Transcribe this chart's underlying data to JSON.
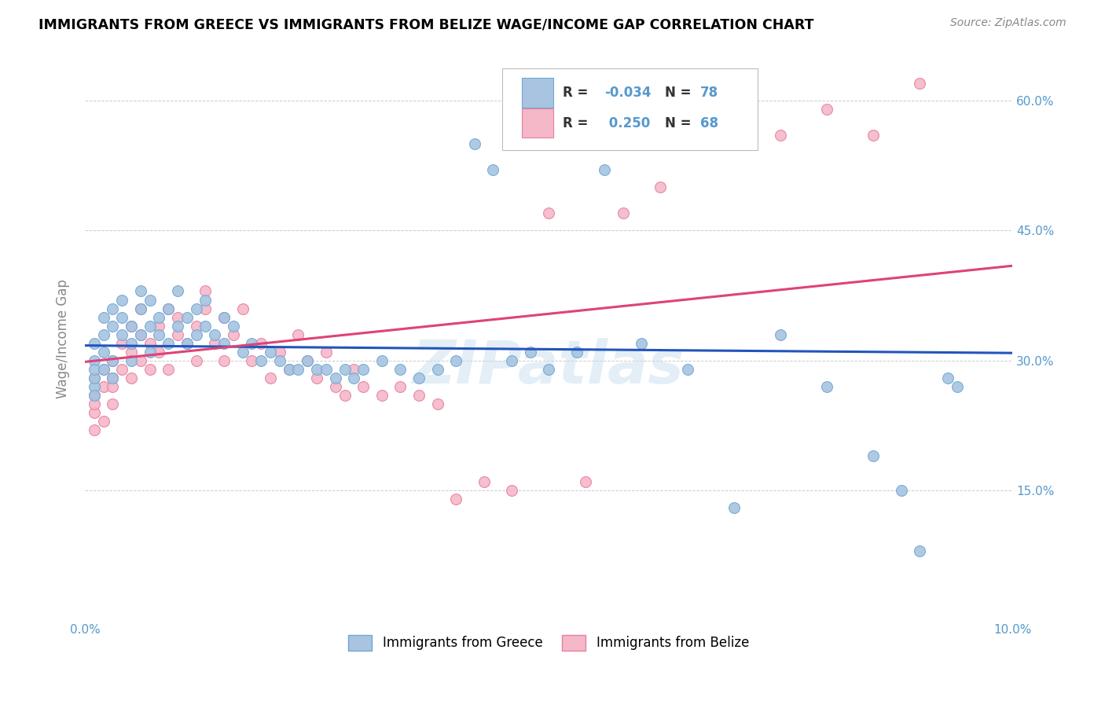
{
  "title": "IMMIGRANTS FROM GREECE VS IMMIGRANTS FROM BELIZE WAGE/INCOME GAP CORRELATION CHART",
  "source": "Source: ZipAtlas.com",
  "ylabel": "Wage/Income Gap",
  "xlim": [
    0.0,
    0.1
  ],
  "ylim": [
    0.0,
    0.65
  ],
  "x_ticks": [
    0.0,
    0.02,
    0.04,
    0.06,
    0.08,
    0.1
  ],
  "y_ticks": [
    0.0,
    0.15,
    0.3,
    0.45,
    0.6
  ],
  "greece_color": "#a8c4e0",
  "belize_color": "#f4b8c8",
  "greece_edge": "#6fa8d4",
  "belize_edge": "#e87fa0",
  "trend_greece_color": "#2255bb",
  "trend_belize_color": "#dd4477",
  "trend_belize_dash_color": "#ddaaaa",
  "R_greece": -0.034,
  "N_greece": 78,
  "R_belize": 0.25,
  "N_belize": 68,
  "legend_label_greece": "Immigrants from Greece",
  "legend_label_belize": "Immigrants from Belize",
  "greece_x": [
    0.001,
    0.001,
    0.001,
    0.001,
    0.001,
    0.001,
    0.002,
    0.002,
    0.002,
    0.002,
    0.003,
    0.003,
    0.003,
    0.003,
    0.004,
    0.004,
    0.004,
    0.005,
    0.005,
    0.005,
    0.006,
    0.006,
    0.006,
    0.007,
    0.007,
    0.007,
    0.008,
    0.008,
    0.009,
    0.009,
    0.01,
    0.01,
    0.011,
    0.011,
    0.012,
    0.012,
    0.013,
    0.013,
    0.014,
    0.015,
    0.015,
    0.016,
    0.017,
    0.018,
    0.019,
    0.02,
    0.021,
    0.022,
    0.023,
    0.024,
    0.025,
    0.026,
    0.027,
    0.028,
    0.029,
    0.03,
    0.032,
    0.034,
    0.036,
    0.038,
    0.04,
    0.042,
    0.044,
    0.046,
    0.048,
    0.05,
    0.053,
    0.056,
    0.06,
    0.065,
    0.07,
    0.075,
    0.08,
    0.085,
    0.088,
    0.09,
    0.093,
    0.094
  ],
  "greece_y": [
    0.27,
    0.3,
    0.28,
    0.26,
    0.29,
    0.32,
    0.35,
    0.33,
    0.31,
    0.29,
    0.36,
    0.34,
    0.3,
    0.28,
    0.37,
    0.33,
    0.35,
    0.32,
    0.34,
    0.3,
    0.38,
    0.36,
    0.33,
    0.37,
    0.34,
    0.31,
    0.35,
    0.33,
    0.36,
    0.32,
    0.38,
    0.34,
    0.35,
    0.32,
    0.36,
    0.33,
    0.37,
    0.34,
    0.33,
    0.35,
    0.32,
    0.34,
    0.31,
    0.32,
    0.3,
    0.31,
    0.3,
    0.29,
    0.29,
    0.3,
    0.29,
    0.29,
    0.28,
    0.29,
    0.28,
    0.29,
    0.3,
    0.29,
    0.28,
    0.29,
    0.3,
    0.55,
    0.52,
    0.3,
    0.31,
    0.29,
    0.31,
    0.52,
    0.32,
    0.29,
    0.13,
    0.33,
    0.27,
    0.19,
    0.15,
    0.08,
    0.28,
    0.27
  ],
  "belize_x": [
    0.001,
    0.001,
    0.001,
    0.001,
    0.001,
    0.002,
    0.002,
    0.002,
    0.003,
    0.003,
    0.003,
    0.003,
    0.004,
    0.004,
    0.005,
    0.005,
    0.005,
    0.006,
    0.006,
    0.006,
    0.007,
    0.007,
    0.008,
    0.008,
    0.009,
    0.009,
    0.01,
    0.01,
    0.011,
    0.012,
    0.012,
    0.013,
    0.013,
    0.014,
    0.015,
    0.015,
    0.016,
    0.017,
    0.018,
    0.019,
    0.02,
    0.021,
    0.022,
    0.023,
    0.024,
    0.025,
    0.026,
    0.027,
    0.028,
    0.029,
    0.03,
    0.032,
    0.034,
    0.036,
    0.038,
    0.04,
    0.043,
    0.046,
    0.05,
    0.054,
    0.058,
    0.062,
    0.066,
    0.07,
    0.075,
    0.08,
    0.085,
    0.09
  ],
  "belize_y": [
    0.26,
    0.24,
    0.28,
    0.22,
    0.25,
    0.29,
    0.27,
    0.23,
    0.28,
    0.25,
    0.3,
    0.27,
    0.32,
    0.29,
    0.31,
    0.34,
    0.28,
    0.33,
    0.3,
    0.36,
    0.32,
    0.29,
    0.34,
    0.31,
    0.36,
    0.29,
    0.33,
    0.35,
    0.32,
    0.3,
    0.34,
    0.38,
    0.36,
    0.32,
    0.35,
    0.3,
    0.33,
    0.36,
    0.3,
    0.32,
    0.28,
    0.31,
    0.29,
    0.33,
    0.3,
    0.28,
    0.31,
    0.27,
    0.26,
    0.29,
    0.27,
    0.26,
    0.27,
    0.26,
    0.25,
    0.14,
    0.16,
    0.15,
    0.47,
    0.16,
    0.47,
    0.5,
    0.55,
    0.6,
    0.56,
    0.59,
    0.56,
    0.62
  ],
  "watermark": "ZIPatlas",
  "figsize": [
    14.06,
    8.92
  ],
  "dpi": 100
}
